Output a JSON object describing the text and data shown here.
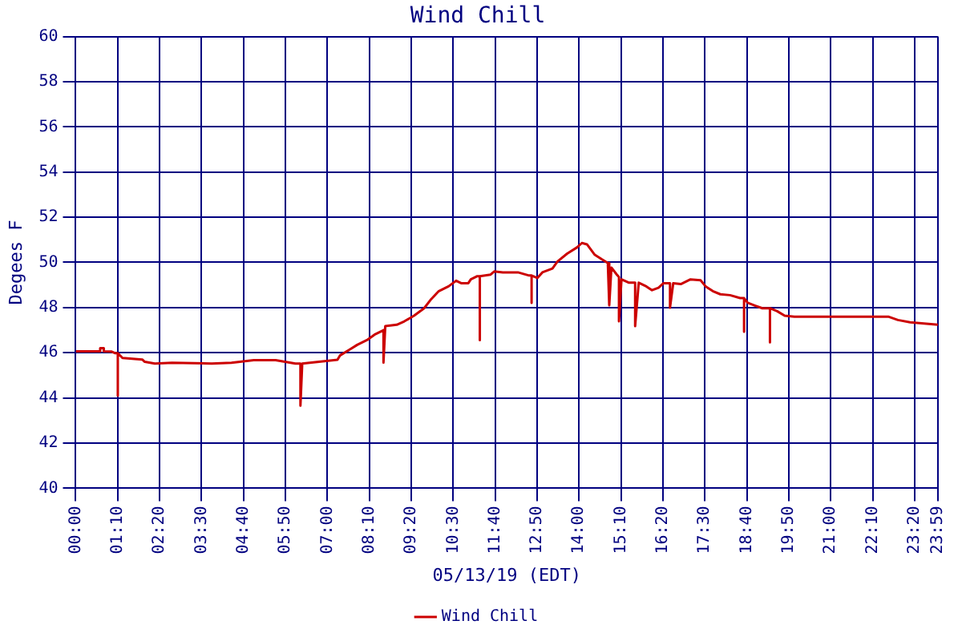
{
  "chart_data": {
    "type": "line",
    "title": "Wind Chill",
    "xlabel": "05/13/19 (EDT)",
    "ylabel": "Degees F",
    "xlim": [
      0,
      23.983
    ],
    "xticks": [
      {
        "value": 0,
        "label": "00:00"
      },
      {
        "value": 1.1667,
        "label": "01:10"
      },
      {
        "value": 2.3333,
        "label": "02:20"
      },
      {
        "value": 3.5,
        "label": "03:30"
      },
      {
        "value": 4.6667,
        "label": "04:40"
      },
      {
        "value": 5.8333,
        "label": "05:50"
      },
      {
        "value": 7,
        "label": "07:00"
      },
      {
        "value": 8.1667,
        "label": "08:10"
      },
      {
        "value": 9.3333,
        "label": "09:20"
      },
      {
        "value": 10.5,
        "label": "10:30"
      },
      {
        "value": 11.6667,
        "label": "11:40"
      },
      {
        "value": 12.8333,
        "label": "12:50"
      },
      {
        "value": 14,
        "label": "14:00"
      },
      {
        "value": 15.1667,
        "label": "15:10"
      },
      {
        "value": 16.3333,
        "label": "16:20"
      },
      {
        "value": 17.5,
        "label": "17:30"
      },
      {
        "value": 18.6667,
        "label": "18:40"
      },
      {
        "value": 19.8333,
        "label": "19:50"
      },
      {
        "value": 21,
        "label": "21:00"
      },
      {
        "value": 22.1667,
        "label": "22:10"
      },
      {
        "value": 23.3333,
        "label": "23:20"
      },
      {
        "value": 23.983,
        "label": "23:59"
      }
    ],
    "ylim": [
      40,
      60
    ],
    "yticks": [
      40,
      42,
      44,
      46,
      48,
      50,
      52,
      54,
      56,
      58,
      60
    ],
    "grid": true,
    "legend": "bottom",
    "marker": "none",
    "line_style": "solid",
    "series": [
      {
        "name": "Wind Chill",
        "color": "#cc0000",
        "x": [
          0,
          0.68,
          0.68,
          0.78,
          0.78,
          1.0,
          1.1,
          1.17,
          1.17,
          1.17,
          1.3,
          1.85,
          1.92,
          2.2,
          2.68,
          3.78,
          4.33,
          4.95,
          5.56,
          6.11,
          6.25,
          6.25,
          6.3,
          6.87,
          7.28,
          7.35,
          7.62,
          7.83,
          8.1,
          8.31,
          8.56,
          8.56,
          8.61,
          8.93,
          9.14,
          9.41,
          9.69,
          9.89,
          10.1,
          10.37,
          10.58,
          10.72,
          10.92,
          10.99,
          11.17,
          11.24,
          11.24,
          11.24,
          11.54,
          11.64,
          11.88,
          12.3,
          12.61,
          12.68,
          12.68,
          12.68,
          12.84,
          12.98,
          13.26,
          13.4,
          13.67,
          13.94,
          14.08,
          14.22,
          14.43,
          14.63,
          14.8,
          14.84,
          14.84,
          14.9,
          15.05,
          15.11,
          15.11,
          15.18,
          15.39,
          15.56,
          15.56,
          15.66,
          15.87,
          16.03,
          16.21,
          16.35,
          16.53,
          16.53,
          16.62,
          16.83,
          17.1,
          17.38,
          17.52,
          17.72,
          17.93,
          18.2,
          18.48,
          18.59,
          18.59,
          18.59,
          18.69,
          18.89,
          19.1,
          19.31,
          19.31,
          19.31,
          19.51,
          19.72,
          19.99,
          20.95,
          22.6,
          22.87,
          23.21,
          23.983
        ],
        "values": [
          46.06,
          46.06,
          46.2,
          46.2,
          46.06,
          46.05,
          45.98,
          45.98,
          44.1,
          45.98,
          45.77,
          45.7,
          45.6,
          45.52,
          45.56,
          45.52,
          45.56,
          45.67,
          45.67,
          45.52,
          45.52,
          43.66,
          45.52,
          45.62,
          45.69,
          45.88,
          46.14,
          46.35,
          46.56,
          46.8,
          47.0,
          45.57,
          47.18,
          47.24,
          47.39,
          47.64,
          47.97,
          48.38,
          48.73,
          48.94,
          49.19,
          49.08,
          49.08,
          49.25,
          49.39,
          49.39,
          46.56,
          49.39,
          49.46,
          49.6,
          49.56,
          49.56,
          49.42,
          49.42,
          48.21,
          49.42,
          49.31,
          49.56,
          49.73,
          50.04,
          50.39,
          50.66,
          50.86,
          50.8,
          50.35,
          50.14,
          49.97,
          49.97,
          48.1,
          49.77,
          49.46,
          49.35,
          47.39,
          49.25,
          49.1,
          49.1,
          47.18,
          49.1,
          48.94,
          48.77,
          48.88,
          49.08,
          49.08,
          48.0,
          49.08,
          49.04,
          49.25,
          49.21,
          48.94,
          48.73,
          48.59,
          48.55,
          48.42,
          48.42,
          46.93,
          48.42,
          48.21,
          48.09,
          47.97,
          47.97,
          46.46,
          47.97,
          47.84,
          47.64,
          47.6,
          47.6,
          47.6,
          47.45,
          47.35,
          47.24
        ]
      }
    ]
  }
}
